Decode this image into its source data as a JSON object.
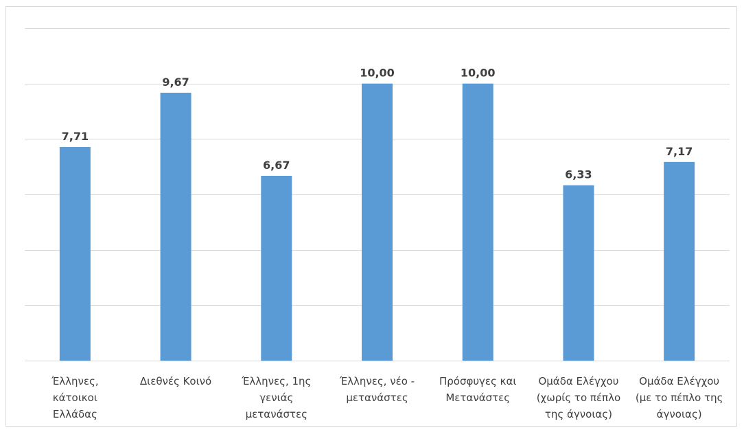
{
  "chart_data": {
    "type": "bar",
    "categories": [
      [
        "Έλληνες,",
        "κάτοικοι",
        "Ελλάδας"
      ],
      [
        "Διεθνές Κοινό"
      ],
      [
        "Έλληνες, 1ης",
        "γενιάς",
        "μετανάστες"
      ],
      [
        "Έλληνες, νέο -",
        "μετανάστες"
      ],
      [
        "Πρόσφυγες και",
        "Μετανάστες"
      ],
      [
        "Ομάδα Ελέγχου",
        "(χωρίς το πέπλο",
        "της άγνοιας)"
      ],
      [
        "Ομάδα Ελέγχου",
        "(με το πέπλο της",
        "άγνοιας)"
      ]
    ],
    "values": [
      7.71,
      9.67,
      6.67,
      10.0,
      10.0,
      6.33,
      7.17
    ],
    "data_labels": [
      "7,71",
      "9,67",
      "6,67",
      "10,00",
      "10,00",
      "6,33",
      "7,17"
    ],
    "ylim": [
      0,
      12
    ],
    "gridline_step": 2,
    "grid": true,
    "bar_color": "#5b9bd5",
    "title": "",
    "xlabel": "",
    "ylabel": ""
  }
}
